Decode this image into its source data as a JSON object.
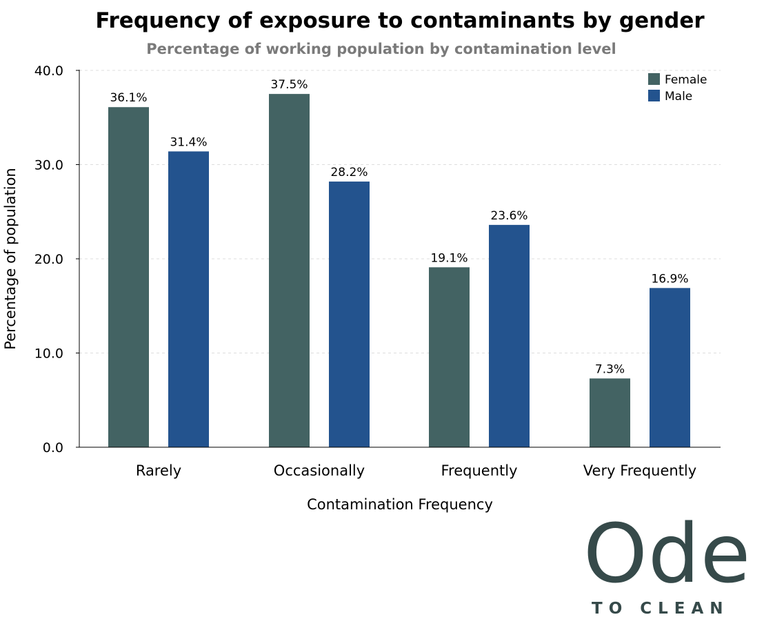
{
  "chart_data": {
    "type": "bar",
    "title": "Frequency of exposure to contaminants by gender",
    "subtitle": "Percentage of working population by contamination level",
    "xlabel": "Contamination Frequency",
    "ylabel": "Percentage of population",
    "categories": [
      "Rarely",
      "Occasionally",
      "Frequently",
      "Very Frequently"
    ],
    "series": [
      {
        "name": "Female",
        "color": "#436363",
        "values": [
          36.1,
          37.5,
          19.1,
          7.3
        ],
        "labels": [
          "36.1%",
          "37.5%",
          "19.1%",
          "7.3%"
        ]
      },
      {
        "name": "Male",
        "color": "#23538e",
        "values": [
          31.4,
          28.2,
          23.6,
          16.9
        ],
        "labels": [
          "31.4%",
          "28.2%",
          "23.6%",
          "16.9%"
        ]
      }
    ],
    "ylim": [
      0,
      40
    ],
    "yticks": [
      0,
      10,
      20,
      30,
      40
    ],
    "ytick_labels": [
      "0.0",
      "10.0",
      "20.0",
      "30.0",
      "40.0"
    ],
    "grid": true,
    "legend_position": "top-right"
  },
  "logo": {
    "main": "Ode",
    "sub": "TO CLEAN"
  }
}
